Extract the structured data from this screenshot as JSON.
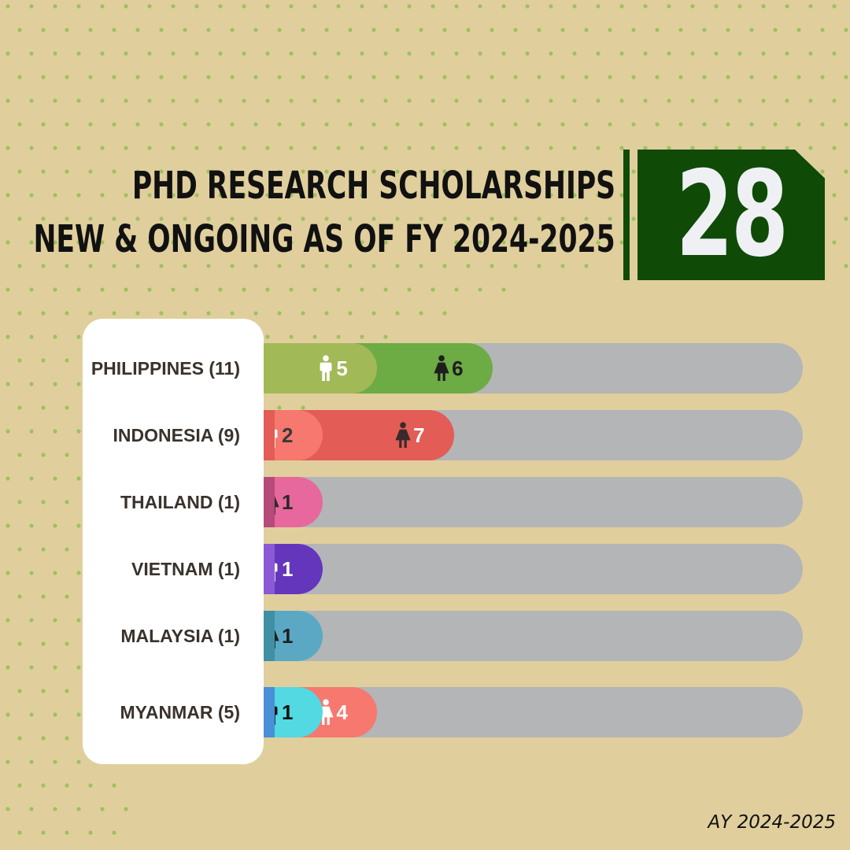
{
  "header": {
    "title_line1": "PHD RESEARCH SCHOLARSHIPS",
    "title_line2": "NEW & ONGOING AS OF FY 2024-2025",
    "total": "28"
  },
  "footer": {
    "label": "AY 2024-2025"
  },
  "colors": {
    "background": "#e0cf9d",
    "dots": "#9dc15f",
    "accent_green": "#0f4a06",
    "track": "#b3b5b6"
  },
  "chart_data": {
    "type": "bar",
    "orientation": "horizontal",
    "stacked": true,
    "xlim": [
      0,
      28
    ],
    "icon_legend": {
      "male-icon": "male figure",
      "female-icon": "female figure"
    },
    "categories": [
      "PHILIPPINES (11)",
      "INDONESIA (9)",
      "THAILAND (1)",
      "VIETNAM (1)",
      "MALAYSIA (1)",
      "MYANMAR (5)"
    ],
    "rows": [
      {
        "country": "PHILIPPINES (11)",
        "total": 11,
        "segments": [
          {
            "icon": "male-icon",
            "value": 5,
            "color": "#a2b957",
            "text_color": "#ffffff",
            "icon_color": "#ffffff"
          },
          {
            "icon": "female-icon",
            "value": 6,
            "color": "#6dab45",
            "text_color": "#1e1e1e",
            "icon_color": "#1e1e1e"
          }
        ]
      },
      {
        "country": "INDONESIA (9)",
        "total": 9,
        "stub": "#e35c56",
        "segments": [
          {
            "icon": "male-icon",
            "value": 2,
            "color": "#f6786f",
            "text_color": "#3a3a3a",
            "icon_color": "#ffffff"
          },
          {
            "icon": "female-icon",
            "value": 7,
            "color": "#e35c56",
            "text_color": "#ffffff",
            "icon_color": "#3a2a2a"
          }
        ]
      },
      {
        "country": "THAILAND (1)",
        "total": 1,
        "stub": "#b64a7a",
        "segments": [
          {
            "icon": "female-icon",
            "value": 1,
            "color": "#e7689c",
            "text_color": "#2a2a2a",
            "icon_color": "#2a2a2a"
          }
        ]
      },
      {
        "country": "VIETNAM (1)",
        "total": 1,
        "stub": "#8a5ad6",
        "segments": [
          {
            "icon": "male-icon",
            "value": 1,
            "color": "#6436bb",
            "text_color": "#ffffff",
            "icon_color": "#ffffff"
          }
        ]
      },
      {
        "country": "MALAYSIA (1)",
        "total": 1,
        "stub": "#3f90a5",
        "segments": [
          {
            "icon": "female-icon",
            "value": 1,
            "color": "#5ba8c4",
            "text_color": "#1f1f1f",
            "icon_color": "#1f1f1f"
          }
        ]
      },
      {
        "country": "MYANMAR (5)",
        "total": 5,
        "stub": "#4a90d6",
        "segments": [
          {
            "icon": "male-icon",
            "value": 1,
            "color": "#52d9e2",
            "text_color": "#111111",
            "icon_color": "#111111"
          },
          {
            "icon": "female-icon",
            "value": 4,
            "color": "#f6786f",
            "text_color": "#ffffff",
            "icon_color": "#ffffff"
          }
        ]
      }
    ]
  }
}
